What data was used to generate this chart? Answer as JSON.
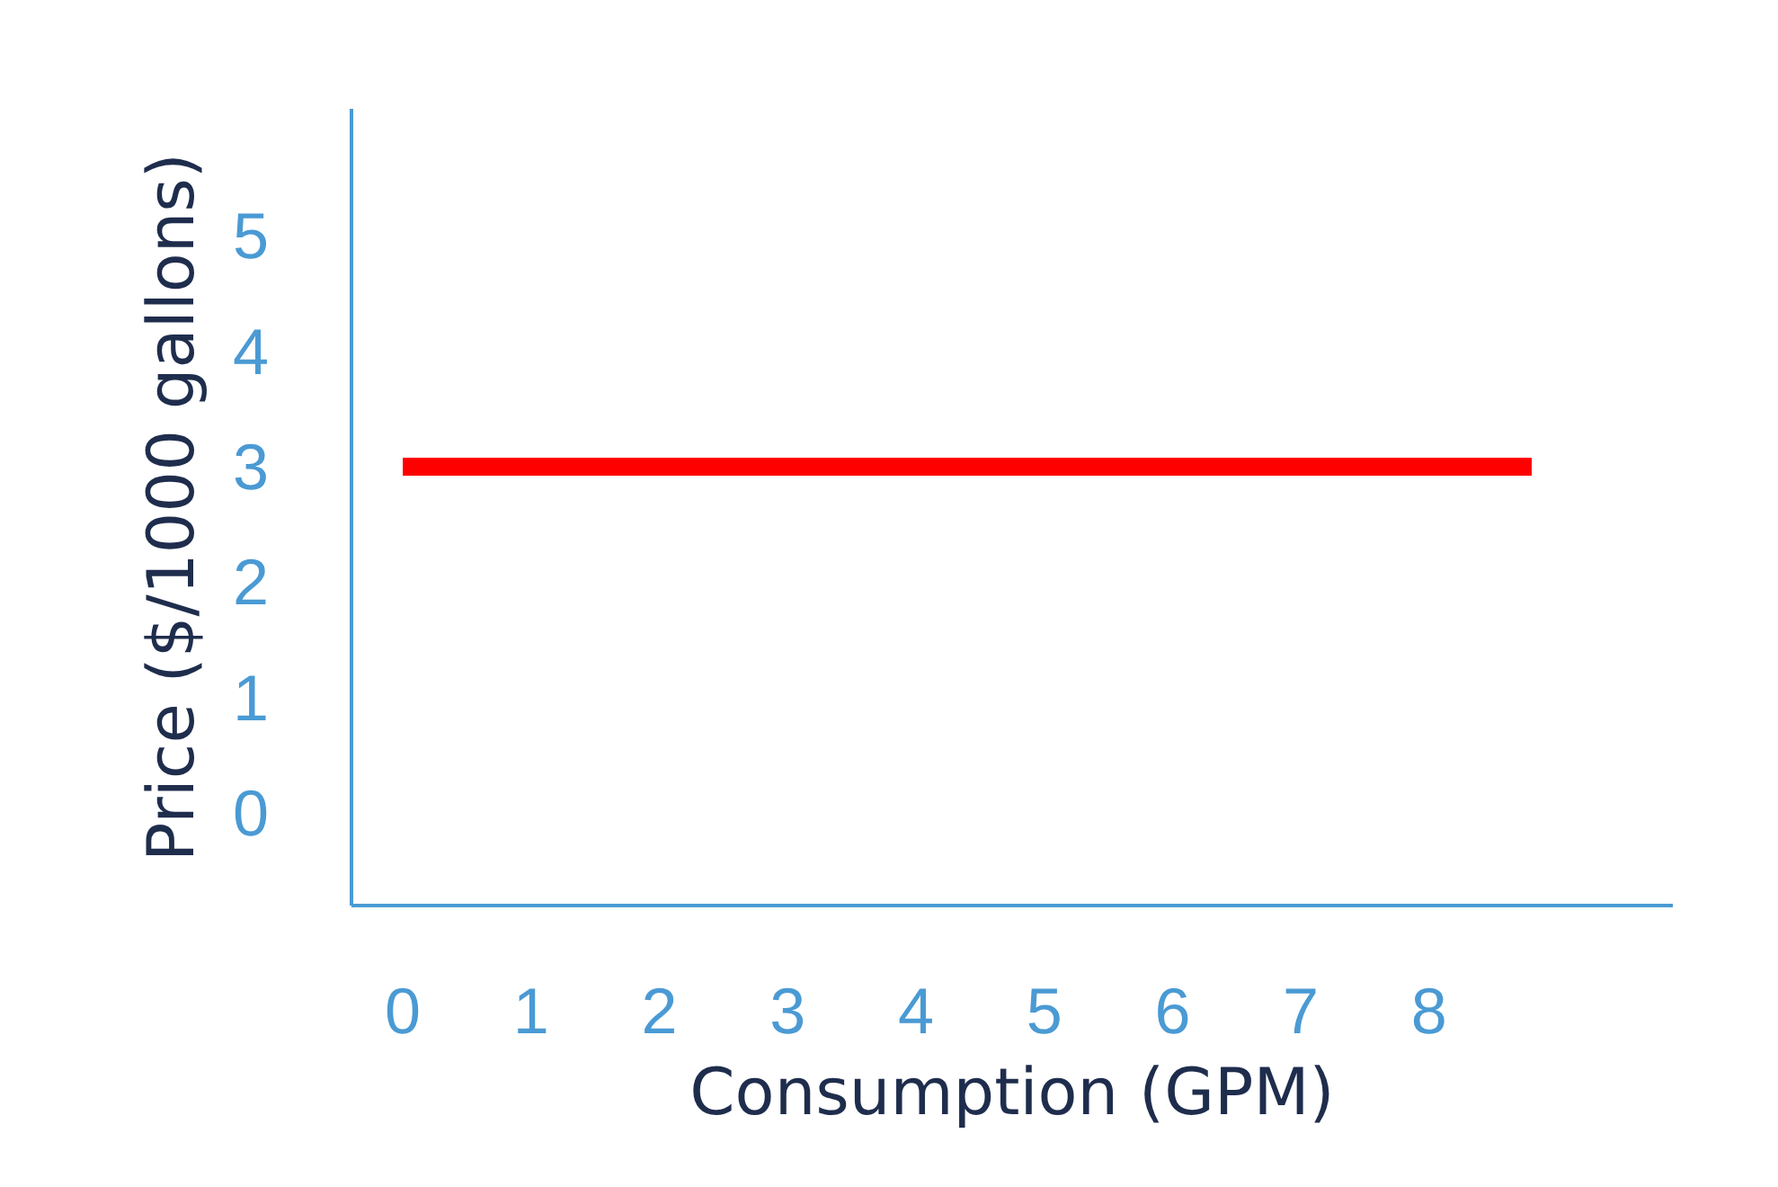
{
  "chart_data": {
    "type": "line",
    "xlabel": "Consumption (GPM)",
    "ylabel": "Price ($/1000 gallons)",
    "x": [
      0,
      8.8
    ],
    "series": [
      {
        "color": "#ff0000",
        "values": [
          3,
          3
        ]
      }
    ],
    "xlim": [
      -0.4,
      9.9
    ],
    "ylim": [
      -0.8,
      6.1
    ],
    "xticks": [
      0,
      1,
      2,
      3,
      4,
      5,
      6,
      7,
      8
    ],
    "yticks": [
      0,
      1,
      2,
      3,
      4,
      5
    ],
    "grid": false,
    "marker": "none",
    "line_style": "solid"
  }
}
